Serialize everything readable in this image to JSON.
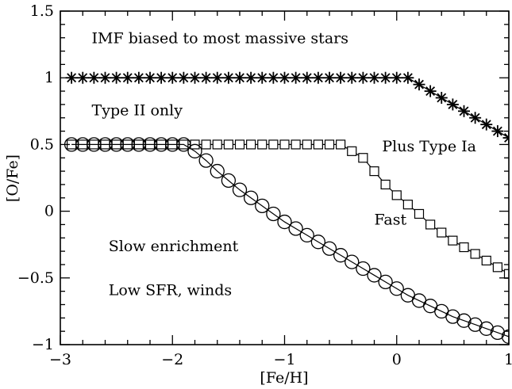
{
  "chart_data": {
    "type": "scatter",
    "xlabel": "[Fe/H]",
    "ylabel": "[O/Fe]",
    "xlim": [
      -3,
      1
    ],
    "ylim": [
      -1,
      1.5
    ],
    "xticks": [
      -3,
      -2,
      -1,
      0,
      1
    ],
    "xtick_labels": [
      "−3",
      "−2",
      "−1",
      "0",
      "1"
    ],
    "yticks": [
      -1,
      -0.5,
      0,
      0.5,
      1,
      1.5
    ],
    "ytick_labels": [
      "−1",
      "−0.5",
      "0",
      "0.5",
      "1",
      "1.5"
    ],
    "grid": false,
    "series": [
      {
        "marker": "star",
        "color": "#000000",
        "x": [
          -2.9,
          -2.8,
          -2.7,
          -2.6,
          -2.5,
          -2.4,
          -2.3,
          -2.2,
          -2.1,
          -2.0,
          -1.9,
          -1.8,
          -1.7,
          -1.6,
          -1.5,
          -1.4,
          -1.3,
          -1.2,
          -1.1,
          -1.0,
          -0.9,
          -0.8,
          -0.7,
          -0.6,
          -0.5,
          -0.4,
          -0.3,
          -0.2,
          -0.1,
          0.0,
          0.1,
          0.2,
          0.3,
          0.4,
          0.5,
          0.6,
          0.7,
          0.8,
          0.9,
          1.0
        ],
        "y": [
          1.0,
          1.0,
          1.0,
          1.0,
          1.0,
          1.0,
          1.0,
          1.0,
          1.0,
          1.0,
          1.0,
          1.0,
          1.0,
          1.0,
          1.0,
          1.0,
          1.0,
          1.0,
          1.0,
          1.0,
          1.0,
          1.0,
          1.0,
          1.0,
          1.0,
          1.0,
          1.0,
          1.0,
          1.0,
          1.0,
          1.0,
          0.95,
          0.9,
          0.85,
          0.8,
          0.75,
          0.7,
          0.65,
          0.6,
          0.55
        ]
      },
      {
        "marker": "square",
        "color": "#000000",
        "x": [
          -2.9,
          -2.8,
          -2.7,
          -2.6,
          -2.5,
          -2.4,
          -2.3,
          -2.2,
          -2.1,
          -2.0,
          -1.9,
          -1.8,
          -1.7,
          -1.6,
          -1.5,
          -1.4,
          -1.3,
          -1.2,
          -1.1,
          -1.0,
          -0.9,
          -0.8,
          -0.7,
          -0.6,
          -0.5,
          -0.4,
          -0.3,
          -0.2,
          -0.1,
          0.0,
          0.1,
          0.2,
          0.3,
          0.4,
          0.5,
          0.6,
          0.7,
          0.8,
          0.9,
          1.0
        ],
        "y": [
          0.5,
          0.5,
          0.5,
          0.5,
          0.5,
          0.5,
          0.5,
          0.5,
          0.5,
          0.5,
          0.5,
          0.5,
          0.5,
          0.5,
          0.5,
          0.5,
          0.5,
          0.5,
          0.5,
          0.5,
          0.5,
          0.5,
          0.5,
          0.5,
          0.5,
          0.45,
          0.4,
          0.3,
          0.2,
          0.12,
          0.05,
          -0.02,
          -0.1,
          -0.16,
          -0.22,
          -0.27,
          -0.32,
          -0.37,
          -0.42,
          -0.47
        ]
      },
      {
        "marker": "circle",
        "color": "#000000",
        "x": [
          -2.9,
          -2.8,
          -2.7,
          -2.6,
          -2.5,
          -2.4,
          -2.3,
          -2.2,
          -2.1,
          -2.0,
          -1.9,
          -1.8,
          -1.7,
          -1.6,
          -1.5,
          -1.4,
          -1.3,
          -1.2,
          -1.1,
          -1.0,
          -0.9,
          -0.8,
          -0.7,
          -0.6,
          -0.5,
          -0.4,
          -0.3,
          -0.2,
          -0.1,
          0.0,
          0.1,
          0.2,
          0.3,
          0.4,
          0.5,
          0.6,
          0.7,
          0.8,
          0.9,
          1.0
        ],
        "y": [
          0.5,
          0.5,
          0.5,
          0.5,
          0.5,
          0.5,
          0.5,
          0.5,
          0.5,
          0.5,
          0.5,
          0.45,
          0.38,
          0.3,
          0.23,
          0.16,
          0.1,
          0.04,
          -0.02,
          -0.08,
          -0.13,
          -0.18,
          -0.23,
          -0.28,
          -0.33,
          -0.38,
          -0.43,
          -0.48,
          -0.53,
          -0.58,
          -0.63,
          -0.67,
          -0.71,
          -0.75,
          -0.79,
          -0.82,
          -0.85,
          -0.88,
          -0.91,
          -0.94
        ]
      }
    ],
    "annotations": [
      {
        "text": "IMF biased to most massive stars",
        "x": -2.72,
        "y": 1.26,
        "color": "#000000"
      },
      {
        "text": "Type II only",
        "x": -2.72,
        "y": 0.72,
        "color": "#ff0000"
      },
      {
        "text": "Plus Type Ia",
        "x": -0.13,
        "y": 0.45,
        "color": "#ff0000"
      },
      {
        "text": "Fast",
        "x": -0.2,
        "y": -0.1,
        "color": "#000000"
      },
      {
        "text": "Slow enrichment",
        "x": -2.57,
        "y": -0.3,
        "color": "#000000"
      },
      {
        "text": "Low SFR, winds",
        "x": -2.57,
        "y": -0.63,
        "color": "#000000"
      }
    ]
  }
}
